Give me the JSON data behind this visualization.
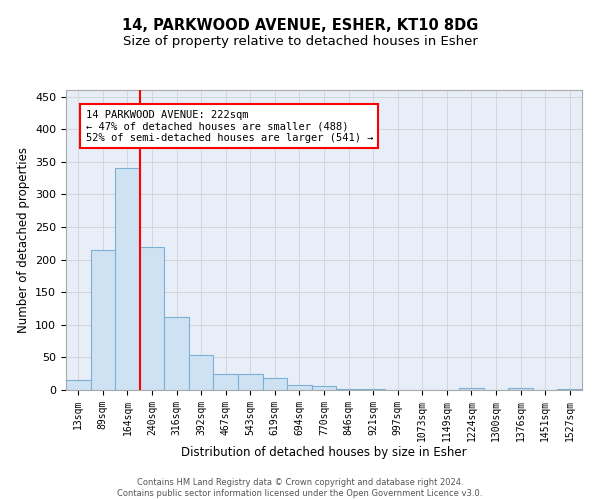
{
  "title_line1": "14, PARKWOOD AVENUE, ESHER, KT10 8DG",
  "title_line2": "Size of property relative to detached houses in Esher",
  "xlabel": "Distribution of detached houses by size in Esher",
  "ylabel": "Number of detached properties",
  "categories": [
    "13sqm",
    "89sqm",
    "164sqm",
    "240sqm",
    "316sqm",
    "392sqm",
    "467sqm",
    "543sqm",
    "619sqm",
    "694sqm",
    "770sqm",
    "846sqm",
    "921sqm",
    "997sqm",
    "1073sqm",
    "1149sqm",
    "1224sqm",
    "1300sqm",
    "1376sqm",
    "1451sqm",
    "1527sqm"
  ],
  "values": [
    15,
    214,
    340,
    220,
    112,
    53,
    25,
    24,
    18,
    8,
    6,
    2,
    2,
    0,
    0,
    0,
    3,
    0,
    3,
    0,
    2
  ],
  "bar_color": "#cfe2f3",
  "bar_edge_color": "#7bafd4",
  "red_line_x": 2.5,
  "annotation_text": "14 PARKWOOD AVENUE: 222sqm\n← 47% of detached houses are smaller (488)\n52% of semi-detached houses are larger (541) →",
  "annotation_box_color": "white",
  "annotation_box_edge_color": "red",
  "red_line_color": "red",
  "grid_color": "#cccccc",
  "background_color": "white",
  "plot_background_color": "#e8eef8",
  "footer_line1": "Contains HM Land Registry data © Crown copyright and database right 2024.",
  "footer_line2": "Contains public sector information licensed under the Open Government Licence v3.0.",
  "ylim": [
    0,
    460
  ],
  "title_fontsize": 10.5,
  "subtitle_fontsize": 9.5,
  "tick_fontsize": 7,
  "label_fontsize": 8.5,
  "yticks": [
    0,
    50,
    100,
    150,
    200,
    250,
    300,
    350,
    400,
    450
  ]
}
